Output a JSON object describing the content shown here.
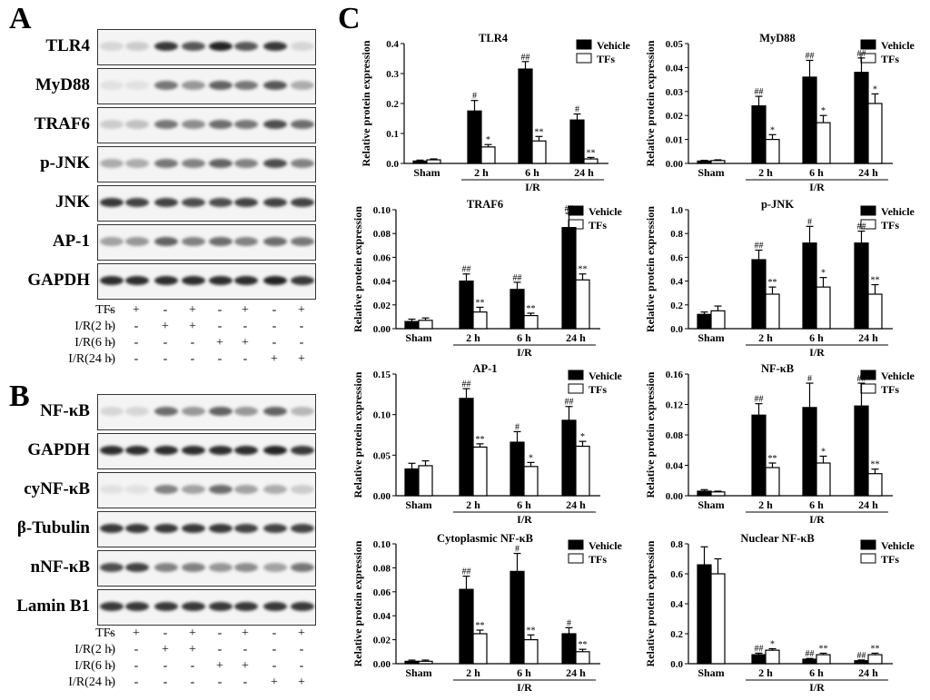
{
  "panel_a": {
    "letter": "A",
    "rows": [
      {
        "label": "TLR4",
        "intensity": [
          0.1,
          0.15,
          0.85,
          0.7,
          0.95,
          0.7,
          0.85,
          0.1
        ]
      },
      {
        "label": "MyD88",
        "intensity": [
          0.05,
          0.05,
          0.55,
          0.4,
          0.65,
          0.55,
          0.7,
          0.3
        ]
      },
      {
        "label": "TRAF6",
        "intensity": [
          0.15,
          0.2,
          0.55,
          0.45,
          0.6,
          0.55,
          0.75,
          0.6
        ]
      },
      {
        "label": "p-JNK",
        "intensity": [
          0.3,
          0.3,
          0.55,
          0.5,
          0.65,
          0.5,
          0.75,
          0.5
        ]
      },
      {
        "label": "JNK",
        "intensity": [
          0.85,
          0.8,
          0.8,
          0.75,
          0.75,
          0.8,
          0.8,
          0.8
        ]
      },
      {
        "label": "AP-1",
        "intensity": [
          0.35,
          0.4,
          0.65,
          0.5,
          0.6,
          0.5,
          0.6,
          0.55
        ]
      },
      {
        "label": "GAPDH",
        "intensity": [
          0.9,
          0.9,
          0.9,
          0.9,
          0.9,
          0.9,
          0.95,
          0.85
        ]
      }
    ],
    "conditions": [
      {
        "label": "TFs",
        "signs": [
          "-",
          "+",
          "-",
          "+",
          "-",
          "+",
          "-",
          "+"
        ]
      },
      {
        "label": "I/R(2 h)",
        "signs": [
          "-",
          "-",
          "+",
          "+",
          "-",
          "-",
          "-",
          "-"
        ]
      },
      {
        "label": "I/R(6 h)",
        "signs": [
          "-",
          "-",
          "-",
          "-",
          "+",
          "+",
          "-",
          "-"
        ]
      },
      {
        "label": "I/R(24 h)",
        "signs": [
          "-",
          "-",
          "-",
          "-",
          "-",
          "-",
          "+",
          "+"
        ]
      }
    ]
  },
  "panel_b": {
    "letter": "B",
    "rows": [
      {
        "label": "NF-κB",
        "intensity": [
          0.1,
          0.1,
          0.6,
          0.4,
          0.65,
          0.4,
          0.65,
          0.25
        ]
      },
      {
        "label": "GAPDH",
        "intensity": [
          0.9,
          0.9,
          0.9,
          0.9,
          0.9,
          0.9,
          0.95,
          0.85
        ]
      },
      {
        "label": "cyNF-κB",
        "intensity": [
          0.05,
          0.05,
          0.5,
          0.35,
          0.6,
          0.35,
          0.3,
          0.15
        ]
      },
      {
        "label": "β-Tubulin",
        "intensity": [
          0.85,
          0.85,
          0.85,
          0.85,
          0.85,
          0.8,
          0.8,
          0.8
        ]
      },
      {
        "label": "nNF-κB",
        "intensity": [
          0.75,
          0.8,
          0.5,
          0.5,
          0.4,
          0.45,
          0.35,
          0.55
        ]
      },
      {
        "label": "Lamin B1",
        "intensity": [
          0.85,
          0.85,
          0.85,
          0.85,
          0.85,
          0.85,
          0.85,
          0.85
        ]
      }
    ],
    "conditions": [
      {
        "label": "TFs",
        "signs": [
          "-",
          "+",
          "-",
          "+",
          "-",
          "+",
          "-",
          "+"
        ]
      },
      {
        "label": "I/R(2 h)",
        "signs": [
          "-",
          "-",
          "+",
          "+",
          "-",
          "-",
          "-",
          "-"
        ]
      },
      {
        "label": "I/R(6 h)",
        "signs": [
          "-",
          "-",
          "-",
          "-",
          "+",
          "+",
          "-",
          "-"
        ]
      },
      {
        "label": "I/R(24 h)",
        "signs": [
          "-",
          "-",
          "-",
          "-",
          "-",
          "-",
          "+",
          "+"
        ]
      }
    ]
  },
  "panel_c_letter": "C",
  "chart_data": [
    {
      "type": "bar",
      "title": "TLR4",
      "ylabel": "Relative protein expression",
      "ylim": [
        0,
        0.4
      ],
      "yticks": [
        "0.0",
        "0.1",
        "0.2",
        "0.3",
        "0.4"
      ],
      "categories": [
        "Sham",
        "2 h",
        "6 h",
        "24 h"
      ],
      "group_label": "I/R",
      "series": [
        {
          "name": "Vehicle",
          "values": [
            0.008,
            0.175,
            0.315,
            0.145
          ],
          "errors": [
            0.003,
            0.035,
            0.025,
            0.02
          ],
          "sig": [
            "",
            "#",
            "##",
            "#"
          ]
        },
        {
          "name": "TFs",
          "values": [
            0.012,
            0.055,
            0.075,
            0.015
          ],
          "errors": [
            0.003,
            0.008,
            0.015,
            0.005
          ],
          "sig": [
            "",
            "*",
            "**",
            "**"
          ]
        }
      ]
    },
    {
      "type": "bar",
      "title": "MyD88",
      "ylabel": "Relative protein expression",
      "ylim": [
        0,
        0.05
      ],
      "yticks": [
        "0.00",
        "0.01",
        "0.02",
        "0.03",
        "0.04",
        "0.05"
      ],
      "categories": [
        "Sham",
        "2 h",
        "6 h",
        "24 h"
      ],
      "group_label": "I/R",
      "series": [
        {
          "name": "Vehicle",
          "values": [
            0.001,
            0.024,
            0.036,
            0.038
          ],
          "errors": [
            0.0003,
            0.004,
            0.007,
            0.006
          ],
          "sig": [
            "",
            "##",
            "##",
            "##"
          ]
        },
        {
          "name": "TFs",
          "values": [
            0.0012,
            0.01,
            0.017,
            0.025
          ],
          "errors": [
            0.0003,
            0.002,
            0.003,
            0.004
          ],
          "sig": [
            "",
            "*",
            "*",
            "*"
          ]
        }
      ]
    },
    {
      "type": "bar",
      "title": "TRAF6",
      "ylabel": "Relative protein expression",
      "ylim": [
        0,
        0.1
      ],
      "yticks": [
        "0.00",
        "0.02",
        "0.04",
        "0.06",
        "0.08",
        "0.10"
      ],
      "categories": [
        "Sham",
        "2 h",
        "6 h",
        "24 h"
      ],
      "group_label": "I/R",
      "series": [
        {
          "name": "Vehicle",
          "values": [
            0.006,
            0.04,
            0.033,
            0.085
          ],
          "errors": [
            0.002,
            0.006,
            0.006,
            0.012
          ],
          "sig": [
            "",
            "##",
            "##",
            "##"
          ]
        },
        {
          "name": "TFs",
          "values": [
            0.007,
            0.014,
            0.011,
            0.041
          ],
          "errors": [
            0.002,
            0.004,
            0.002,
            0.005
          ],
          "sig": [
            "",
            "**",
            "**",
            "**"
          ]
        }
      ]
    },
    {
      "type": "bar",
      "title": "p-JNK",
      "ylabel": "Relative protein expression",
      "ylim": [
        0,
        1.0
      ],
      "yticks": [
        "0.0",
        "0.2",
        "0.4",
        "0.6",
        "0.8",
        "1.0"
      ],
      "categories": [
        "Sham",
        "2 h",
        "6 h",
        "24 h"
      ],
      "group_label": "I/R",
      "series": [
        {
          "name": "Vehicle",
          "values": [
            0.12,
            0.58,
            0.72,
            0.72
          ],
          "errors": [
            0.02,
            0.08,
            0.14,
            0.1
          ],
          "sig": [
            "",
            "##",
            "#",
            "##"
          ]
        },
        {
          "name": "TFs",
          "values": [
            0.15,
            0.29,
            0.35,
            0.29
          ],
          "errors": [
            0.04,
            0.06,
            0.08,
            0.08
          ],
          "sig": [
            "",
            "**",
            "*",
            "**"
          ]
        }
      ]
    },
    {
      "type": "bar",
      "title": "AP-1",
      "ylabel": "Relative protein expression",
      "ylim": [
        0,
        0.15
      ],
      "yticks": [
        "0.00",
        "0.05",
        "0.10",
        "0.15"
      ],
      "categories": [
        "Sham",
        "2 h",
        "6 h",
        "24 h"
      ],
      "group_label": "I/R",
      "series": [
        {
          "name": "Vehicle",
          "values": [
            0.033,
            0.12,
            0.066,
            0.093
          ],
          "errors": [
            0.007,
            0.012,
            0.013,
            0.017
          ],
          "sig": [
            "",
            "##",
            "#",
            "##"
          ]
        },
        {
          "name": "TFs",
          "values": [
            0.037,
            0.06,
            0.036,
            0.061
          ],
          "errors": [
            0.006,
            0.004,
            0.005,
            0.006
          ],
          "sig": [
            "",
            "**",
            "*",
            "*"
          ]
        }
      ]
    },
    {
      "type": "bar",
      "title": "NF-κB",
      "ylabel": "Relative protein expression",
      "ylim": [
        0,
        0.16
      ],
      "yticks": [
        "0.00",
        "0.04",
        "0.08",
        "0.12",
        "0.16"
      ],
      "categories": [
        "Sham",
        "2 h",
        "6 h",
        "24 h"
      ],
      "group_label": "I/R",
      "series": [
        {
          "name": "Vehicle",
          "values": [
            0.006,
            0.106,
            0.116,
            0.118
          ],
          "errors": [
            0.002,
            0.015,
            0.032,
            0.03
          ],
          "sig": [
            "",
            "##",
            "#",
            "##"
          ]
        },
        {
          "name": "TFs",
          "values": [
            0.005,
            0.037,
            0.043,
            0.029
          ],
          "errors": [
            0.001,
            0.006,
            0.009,
            0.006
          ],
          "sig": [
            "",
            "**",
            "*",
            "**"
          ]
        }
      ]
    },
    {
      "type": "bar",
      "title": "Cytoplasmic NF-κB",
      "ylabel": "Relative protein expression",
      "ylim": [
        0,
        0.1
      ],
      "yticks": [
        "0.00",
        "0.02",
        "0.04",
        "0.06",
        "0.08",
        "0.10"
      ],
      "categories": [
        "Sham",
        "2 h",
        "6 h",
        "24 h"
      ],
      "group_label": "I/R",
      "series": [
        {
          "name": "Vehicle",
          "values": [
            0.002,
            0.062,
            0.077,
            0.025
          ],
          "errors": [
            0.001,
            0.011,
            0.015,
            0.005
          ],
          "sig": [
            "",
            "##",
            "#",
            "#"
          ]
        },
        {
          "name": "TFs",
          "values": [
            0.002,
            0.025,
            0.02,
            0.01
          ],
          "errors": [
            0.001,
            0.003,
            0.004,
            0.002
          ],
          "sig": [
            "",
            "**",
            "**",
            "**"
          ]
        }
      ]
    },
    {
      "type": "bar",
      "title": "Nuclear NF-κB",
      "ylabel": "Relative protein expression",
      "ylim": [
        0,
        0.8
      ],
      "yticks": [
        "0.0",
        "0.2",
        "0.4",
        "0.6",
        "0.8"
      ],
      "categories": [
        "Sham",
        "2 h",
        "6 h",
        "24 h"
      ],
      "group_label": "I/R",
      "series": [
        {
          "name": "Vehicle",
          "values": [
            0.66,
            0.06,
            0.03,
            0.02
          ],
          "errors": [
            0.12,
            0.01,
            0.005,
            0.005
          ],
          "sig": [
            "",
            "##",
            "##",
            "##"
          ]
        },
        {
          "name": "TFs",
          "values": [
            0.6,
            0.09,
            0.06,
            0.06
          ],
          "errors": [
            0.1,
            0.01,
            0.01,
            0.01
          ],
          "sig": [
            "",
            "*",
            "**",
            "**"
          ]
        }
      ]
    }
  ]
}
